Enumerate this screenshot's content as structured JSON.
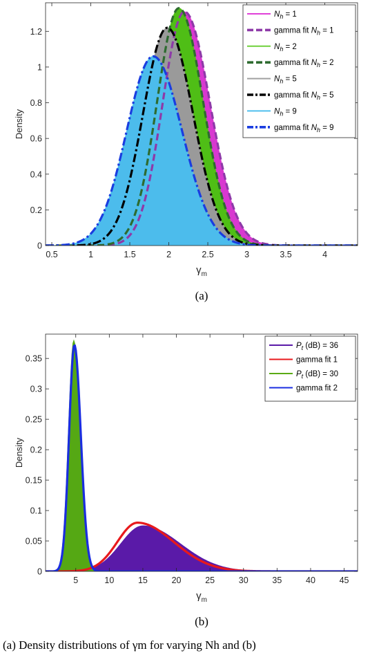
{
  "chart_data": [
    {
      "type": "area",
      "subfigure_label": "(a)",
      "xlabel": "γm",
      "ylabel": "Density",
      "xlim": [
        0.42,
        4.42
      ],
      "ylim": [
        0,
        1.36
      ],
      "xticks": [
        "0.5",
        "1",
        "1.5",
        "2",
        "2.5",
        "3",
        "3.5",
        "4"
      ],
      "xtick_values": [
        0.5,
        1,
        1.5,
        2,
        2.5,
        3,
        3.5,
        4
      ],
      "yticks": [
        "0",
        "0.2",
        "0.4",
        "0.6",
        "0.8",
        "1",
        "1.2"
      ],
      "ytick_values": [
        0,
        0.2,
        0.4,
        0.6,
        0.8,
        1.0,
        1.2
      ],
      "legend_position": "top-right",
      "legend": [
        {
          "label": "Nh = 1",
          "color": "#e040d8",
          "style": "solid"
        },
        {
          "label": "gamma fit Nh = 1",
          "color": "#8e3aa8",
          "style": "dashed"
        },
        {
          "label": "Nh = 2",
          "color": "#6fd03a",
          "style": "solid"
        },
        {
          "label": "gamma fit Nh = 2",
          "color": "#2e6b30",
          "style": "dashed"
        },
        {
          "label": "Nh = 5",
          "color": "#a0a0a0",
          "style": "solid"
        },
        {
          "label": "gamma fit Nh = 5",
          "color": "#000000",
          "style": "dashdot"
        },
        {
          "label": "Nh = 9",
          "color": "#4fbfee",
          "style": "solid"
        },
        {
          "label": "gamma fit Nh = 9",
          "color": "#1a3de0",
          "style": "dashdot"
        }
      ],
      "series": [
        {
          "name": "Nh = 1",
          "kind": "histogram",
          "fill": "#d838d0",
          "mode": 2.2,
          "peak": 1.31,
          "sigma_left": 0.28,
          "sigma_right": 0.33
        },
        {
          "name": "gamma fit Nh = 1",
          "kind": "fit",
          "stroke": "#8e3aa8",
          "dash": "10,5",
          "mode": 2.2,
          "peak": 1.31,
          "sigma_left": 0.28,
          "sigma_right": 0.33
        },
        {
          "name": "Nh = 2",
          "kind": "histogram",
          "fill": "#4fbe16",
          "mode": 2.13,
          "peak": 1.33,
          "sigma_left": 0.28,
          "sigma_right": 0.31
        },
        {
          "name": "gamma fit Nh = 2",
          "kind": "fit",
          "stroke": "#2e6b30",
          "dash": "10,5",
          "mode": 2.13,
          "peak": 1.33,
          "sigma_left": 0.28,
          "sigma_right": 0.31
        },
        {
          "name": "Nh = 5",
          "kind": "histogram",
          "fill": "#9a9a9a",
          "mode": 1.98,
          "peak": 1.22,
          "sigma_left": 0.31,
          "sigma_right": 0.33
        },
        {
          "name": "gamma fit Nh = 5",
          "kind": "fit",
          "stroke": "#000000",
          "dash": "12,4,3,4",
          "mode": 1.98,
          "peak": 1.22,
          "sigma_left": 0.31,
          "sigma_right": 0.33
        },
        {
          "name": "Nh = 9",
          "kind": "histogram",
          "fill": "#4cbcec",
          "mode": 1.8,
          "peak": 1.06,
          "sigma_left": 0.34,
          "sigma_right": 0.37
        },
        {
          "name": "gamma fit Nh = 9",
          "kind": "fit",
          "stroke": "#1a3de0",
          "dash": "12,4,3,4",
          "mode": 1.8,
          "peak": 1.06,
          "sigma_left": 0.34,
          "sigma_right": 0.37
        }
      ]
    },
    {
      "type": "area",
      "subfigure_label": "(b)",
      "xlabel": "γm",
      "ylabel": "Density",
      "xlim": [
        0.5,
        47
      ],
      "ylim": [
        0,
        0.39
      ],
      "xticks": [
        "5",
        "10",
        "15",
        "20",
        "25",
        "30",
        "35",
        "40",
        "45"
      ],
      "xtick_values": [
        5,
        10,
        15,
        20,
        25,
        30,
        35,
        40,
        45
      ],
      "yticks": [
        "0",
        "0.05",
        "0.1",
        "0.15",
        "0.2",
        "0.25",
        "0.3",
        "0.35"
      ],
      "ytick_values": [
        0,
        0.05,
        0.1,
        0.15,
        0.2,
        0.25,
        0.3,
        0.35
      ],
      "legend_position": "top-right",
      "legend": [
        {
          "label": "Pt (dB) = 36",
          "color": "#5a1aa8",
          "style": "solid"
        },
        {
          "label": "gamma fit 1",
          "color": "#e8191c",
          "style": "solid"
        },
        {
          "label": "Pt (dB) = 30",
          "color": "#5aaa14",
          "style": "solid"
        },
        {
          "label": "gamma fit 2",
          "color": "#1a2de0",
          "style": "solid"
        }
      ],
      "series": [
        {
          "name": "Pt (dB) = 36",
          "kind": "histogram",
          "fill": "#5a1aa8",
          "mode": 15.0,
          "peak": 0.075,
          "sigma_left": 3.3,
          "sigma_right": 5.6
        },
        {
          "name": "gamma fit 1",
          "kind": "fit",
          "stroke": "#e8191c",
          "dash": "",
          "mode": 14.2,
          "peak": 0.08,
          "sigma_left": 3.0,
          "sigma_right": 5.4
        },
        {
          "name": "Pt (dB) = 30",
          "kind": "histogram",
          "fill": "#55a814",
          "mode": 4.7,
          "peak": 0.38,
          "sigma_left": 0.8,
          "sigma_right": 0.95
        },
        {
          "name": "gamma fit 2",
          "kind": "fit",
          "stroke": "#1a2de0",
          "dash": "",
          "mode": 4.8,
          "peak": 0.372,
          "sigma_left": 0.8,
          "sigma_right": 0.95
        }
      ]
    }
  ],
  "caption": "(a)  Density distributions of γm for varying Nh and (b)"
}
